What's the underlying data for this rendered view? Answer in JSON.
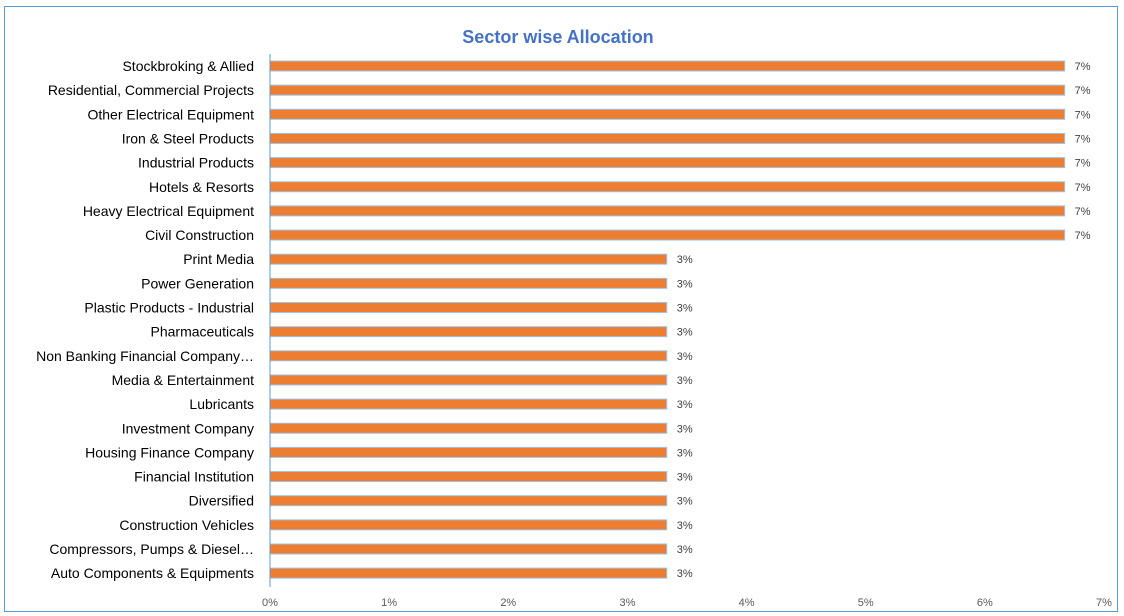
{
  "chart_data": {
    "type": "bar",
    "orientation": "horizontal",
    "title": "Sector wise Allocation",
    "xlabel": "",
    "ylabel": "",
    "xlim": [
      0,
      7
    ],
    "x_ticks": [
      "0%",
      "1%",
      "2%",
      "3%",
      "4%",
      "5%",
      "6%",
      "7%"
    ],
    "grid": false,
    "legend": "none",
    "categories": [
      "Stockbroking & Allied",
      "Residential, Commercial Projects",
      "Other Electrical Equipment",
      "Iron & Steel Products",
      "Industrial Products",
      "Hotels & Resorts",
      "Heavy Electrical Equipment",
      "Civil Construction",
      "Print Media",
      "Power Generation",
      "Plastic Products - Industrial",
      "Pharmaceuticals",
      "Non Banking Financial Company…",
      "Media & Entertainment",
      "Lubricants",
      "Investment Company",
      "Housing Finance Company",
      "Financial Institution",
      "Diversified",
      "Construction Vehicles",
      "Compressors, Pumps & Diesel…",
      "Auto Components & Equipments"
    ],
    "values": [
      6.67,
      6.67,
      6.67,
      6.67,
      6.67,
      6.67,
      6.67,
      6.67,
      3.33,
      3.33,
      3.33,
      3.33,
      3.33,
      3.33,
      3.33,
      3.33,
      3.33,
      3.33,
      3.33,
      3.33,
      3.33,
      3.33
    ],
    "data_labels": [
      "7%",
      "7%",
      "7%",
      "7%",
      "7%",
      "7%",
      "7%",
      "7%",
      "3%",
      "3%",
      "3%",
      "3%",
      "3%",
      "3%",
      "3%",
      "3%",
      "3%",
      "3%",
      "3%",
      "3%",
      "3%",
      "3%"
    ],
    "colors": {
      "bar": "#ed7d31",
      "bar_edge": "#9dc3e6",
      "axis": "#5b9bd5",
      "title": "#4472c4"
    }
  }
}
